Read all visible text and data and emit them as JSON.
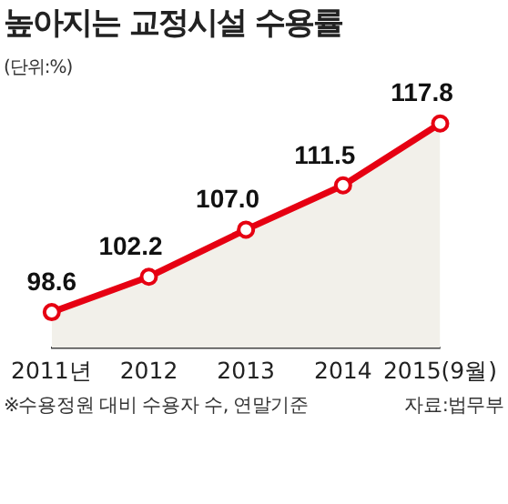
{
  "chart_data": {
    "type": "area",
    "title": "높아지는 교정시설 수용률",
    "subtitle": "(단위:%)",
    "categories": [
      "2011년",
      "2012",
      "2013",
      "2014",
      "2015(9월)"
    ],
    "series": [
      {
        "color": "#e60012",
        "values": [
          98.6,
          102.2,
          107.0,
          111.5,
          117.8
        ],
        "value_labels": [
          "98.6",
          "102.2",
          "107.0",
          "111.5",
          "117.8"
        ]
      }
    ],
    "marker": "circle",
    "tick_labels": "x",
    "annotations": [
      "※수용정원 대비 수용자 수, 연말기준",
      "자료:법무부"
    ]
  }
}
